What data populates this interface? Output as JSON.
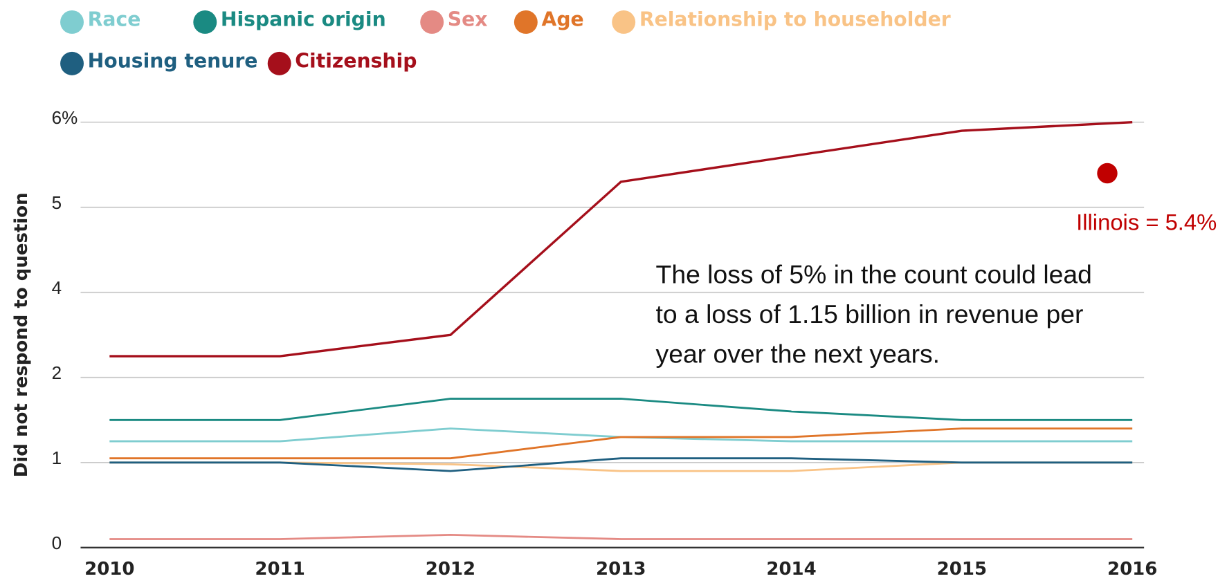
{
  "chart_data": {
    "type": "line",
    "y_label": "Did not respond to question",
    "categories": [
      "2010",
      "2011",
      "2012",
      "2013",
      "2014",
      "2015",
      "2016"
    ],
    "yticks": [
      0,
      1,
      2,
      4,
      5,
      {
        "value": 6,
        "label": "6%"
      }
    ],
    "ylim": [
      0,
      6
    ],
    "grid": true,
    "series": [
      {
        "name": "Race",
        "color": "#7fcdd0",
        "values": [
          1.25,
          1.25,
          1.4,
          1.3,
          1.25,
          1.25,
          1.25
        ]
      },
      {
        "name": "Hispanic origin",
        "color": "#1a8a82",
        "values": [
          1.5,
          1.5,
          1.75,
          1.75,
          1.6,
          1.5,
          1.5
        ]
      },
      {
        "name": "Sex",
        "color": "#e48a84",
        "values": [
          0.1,
          0.1,
          0.15,
          0.1,
          0.1,
          0.1,
          0.1
        ]
      },
      {
        "name": "Age",
        "color": "#e07529",
        "values": [
          1.05,
          1.05,
          1.05,
          1.3,
          1.3,
          1.4,
          1.4
        ]
      },
      {
        "name": "Relationship to householder",
        "color": "#f9c386",
        "values": [
          1.0,
          1.0,
          0.98,
          0.9,
          0.9,
          1.0,
          1.0
        ]
      },
      {
        "name": "Housing tenure",
        "color": "#1f5f80",
        "values": [
          1.0,
          1.0,
          0.9,
          1.05,
          1.05,
          1.0,
          1.0
        ]
      },
      {
        "name": "Citizenship",
        "color": "#a50f1b",
        "values": [
          2.5,
          2.5,
          3.0,
          5.3,
          5.6,
          5.9,
          6.0
        ]
      }
    ],
    "annotations": [
      {
        "text": "Illinois = 5.4%",
        "value": 5.4,
        "color": "#c00000"
      },
      {
        "text": [
          "The loss of 5% in the count could lead",
          "to a loss of 1.15 billion in revenue per",
          "year over the next years."
        ]
      }
    ]
  }
}
